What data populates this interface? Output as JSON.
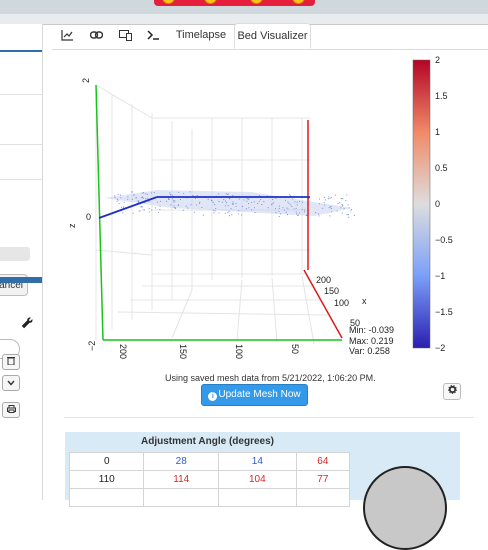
{
  "tabs": [
    {
      "icon": "chart-line-icon",
      "label": ""
    },
    {
      "icon": "link-icon",
      "label": ""
    },
    {
      "icon": "desktop-icon",
      "label": ""
    },
    {
      "icon": "terminal-icon",
      "label": ""
    },
    {
      "icon": "",
      "label": "Timelapse"
    },
    {
      "icon": "",
      "label": "Bed Visualizer",
      "active": true
    }
  ],
  "sidebar": {
    "cancel_label": "ancel"
  },
  "plot": {
    "z_axis_label": "z",
    "x_axis_label": "x",
    "z_ticks": [
      "2",
      "0",
      "−2"
    ],
    "x_ticks": [
      "200",
      "150",
      "100",
      "50"
    ],
    "y_ticks": [
      "200",
      "150",
      "100",
      "50"
    ],
    "colorbar_ticks": [
      "2",
      "1.5",
      "1",
      "0.5",
      "0",
      "−0.5",
      "−1",
      "−1.5",
      "−2"
    ],
    "stats": {
      "min": "Min: -0.039",
      "max": "Max: 0.219",
      "var": "Var: 0.258"
    }
  },
  "saved_text": "Using saved mesh data from 5/21/2022, 1:06:20 PM.",
  "update_button": "Update Mesh Now",
  "adjustment": {
    "title": "Adjustment Angle (degrees)",
    "rows": [
      {
        "a": "0",
        "b": "28",
        "c": "14",
        "d": "64"
      },
      {
        "a": "110",
        "b": "114",
        "c": "104",
        "d": "77"
      }
    ]
  }
}
